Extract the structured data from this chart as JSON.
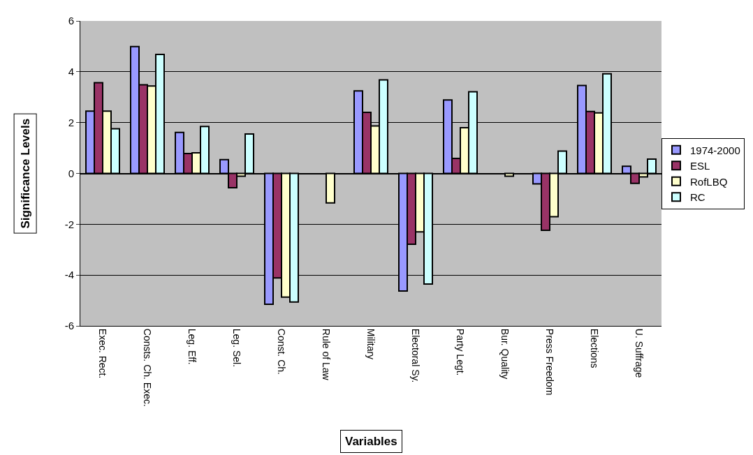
{
  "chart_data": {
    "type": "bar",
    "xlabel": "Variables",
    "ylabel": "Significance Levels",
    "categories": [
      "Exec. Rect.",
      "Consts. Ch. Exec.",
      "Leg. Eff.",
      "Leg. Sel.",
      "Const. Ch.",
      "Rule of Law",
      "Military",
      "Electoral Sy.",
      "Party Legt.",
      "Bur. Quality",
      "Press Freedom",
      "Elections",
      "U. Suffrage"
    ],
    "series": [
      {
        "name": "1974-2000",
        "color": "#9999ff",
        "values": [
          2.45,
          4.99,
          1.61,
          0.54,
          -5.15,
          null,
          3.25,
          -4.63,
          2.89,
          null,
          -0.41,
          3.46,
          0.28
        ]
      },
      {
        "name": "ESL",
        "color": "#993366",
        "values": [
          3.57,
          3.49,
          0.78,
          -0.56,
          -4.11,
          null,
          2.4,
          -2.79,
          0.59,
          null,
          -2.24,
          2.44,
          -0.39
        ]
      },
      {
        "name": "RofLBQ",
        "color": "#ffffcc",
        "values": [
          2.45,
          3.44,
          0.81,
          -0.11,
          -4.87,
          -1.16,
          1.87,
          -2.3,
          1.8,
          -0.11,
          -1.7,
          2.38,
          -0.14
        ]
      },
      {
        "name": "RC",
        "color": "#ccffff",
        "values": [
          1.76,
          4.68,
          1.85,
          1.55,
          -5.06,
          null,
          3.68,
          -4.35,
          3.21,
          null,
          0.88,
          3.92,
          0.56
        ]
      }
    ],
    "ylim": [
      -6,
      6
    ],
    "yticks": [
      -6,
      -4,
      -2,
      0,
      2,
      4,
      6
    ],
    "grid": "y",
    "legend": "right"
  }
}
